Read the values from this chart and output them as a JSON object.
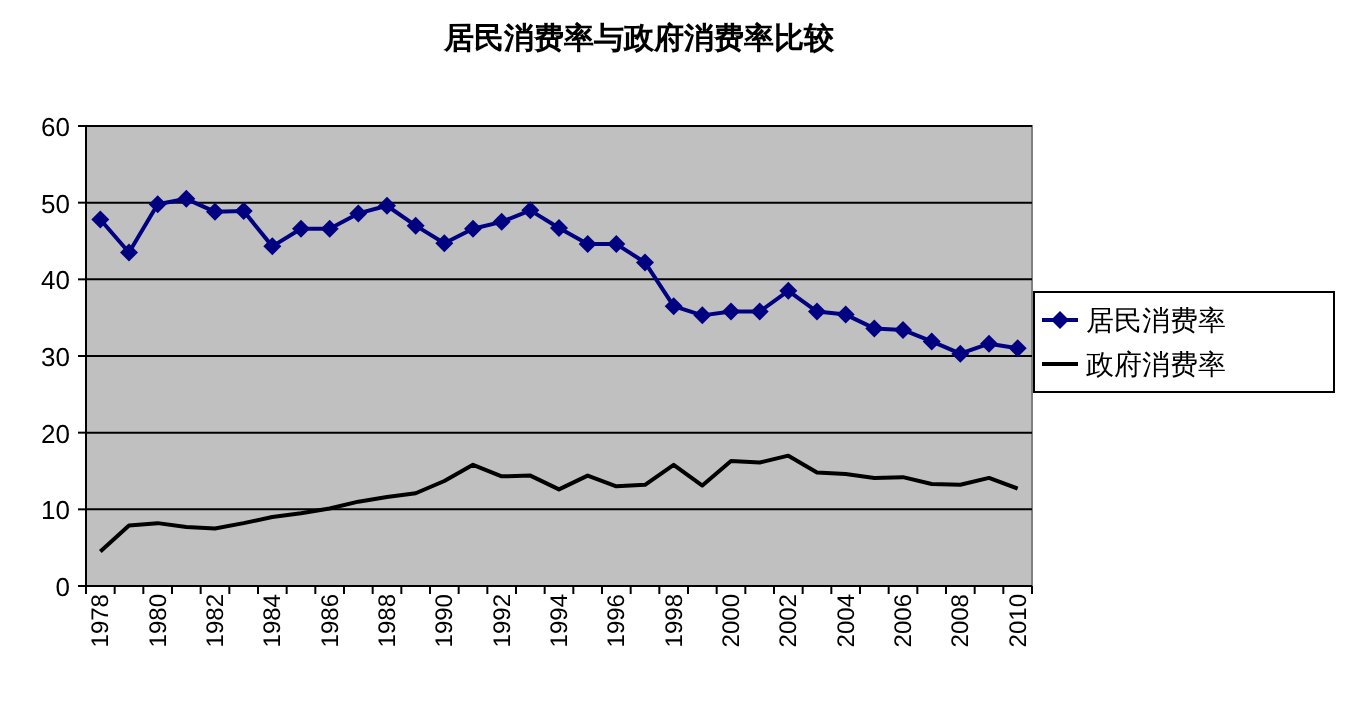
{
  "chart_data": {
    "type": "line",
    "title": "居民消费率与政府消费率比较",
    "categories": [
      "1978",
      null,
      "1980",
      null,
      "1982",
      null,
      "1984",
      null,
      "1986",
      null,
      "1988",
      null,
      "1990",
      null,
      "1992",
      null,
      "1994",
      null,
      "1996",
      null,
      "1998",
      null,
      "2000",
      null,
      "2002",
      null,
      "2004",
      null,
      "2006",
      null,
      "2008",
      null,
      "2010"
    ],
    "series": [
      {
        "name": "居民消费率",
        "color": "#000080",
        "marker": "diamond",
        "values": [
          47.8,
          43.5,
          49.8,
          50.5,
          48.8,
          48.9,
          44.3,
          46.6,
          46.6,
          48.6,
          49.6,
          47.0,
          44.7,
          46.6,
          47.5,
          49.0,
          46.7,
          44.6,
          44.6,
          42.2,
          36.5,
          35.3,
          35.8,
          35.8,
          38.5,
          35.8,
          35.4,
          33.6,
          33.4,
          31.9,
          30.3,
          31.6,
          31.0
        ]
      },
      {
        "name": "政府消费率",
        "color": "#000000",
        "marker": "none",
        "values": [
          4.5,
          7.9,
          8.2,
          7.7,
          7.5,
          8.2,
          9.0,
          9.5,
          10.1,
          11.0,
          11.6,
          12.1,
          13.7,
          15.8,
          14.3,
          14.4,
          12.6,
          14.4,
          13.0,
          13.2,
          15.8,
          13.1,
          16.3,
          16.1,
          17.0,
          14.8,
          14.6,
          14.1,
          14.2,
          13.3,
          13.2,
          14.1,
          12.7
        ]
      }
    ],
    "ylim": [
      0,
      60
    ],
    "yticks": [
      0,
      10,
      20,
      30,
      40,
      50,
      60
    ],
    "grid": "y",
    "legend": "right"
  }
}
